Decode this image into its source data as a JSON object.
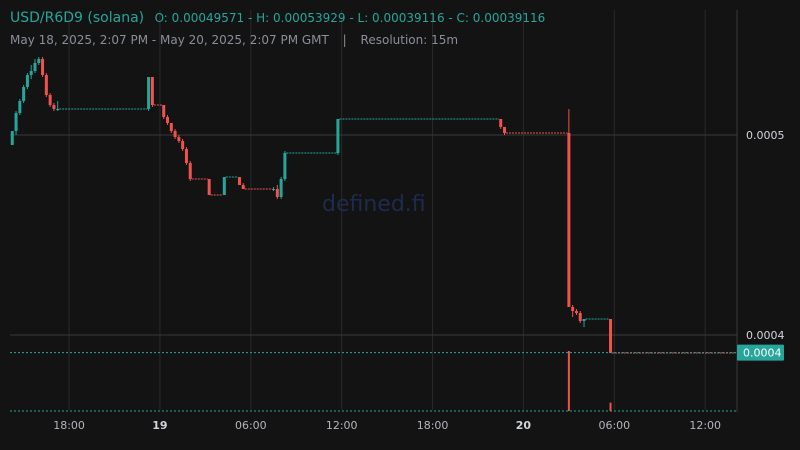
{
  "header": {
    "symbol": "USD/R6D9 (solana)",
    "ohlc_text": "O: 0.00049571 - H: 0.00053929 - L: 0.00039116 - C: 0.00039116",
    "range": "May 18, 2025, 2:07 PM - May 20, 2025, 2:07 PM GMT",
    "separator": "|",
    "resolution": "Resolution: 15m"
  },
  "watermark": "defined.fi",
  "colors": {
    "up": "#26a69a",
    "down": "#ef5350",
    "background": "#131313",
    "grid": "#2a2a2a",
    "last_price_badge": "#26a69a"
  },
  "chart_data": {
    "type": "candlestick",
    "x_ticks": [
      "18:00",
      "19",
      "06:00",
      "12:00",
      "18:00",
      "20",
      "06:00",
      "12:00"
    ],
    "y_ticks": [
      "0.0005",
      "0.0004"
    ],
    "last_price_label": "0.0004",
    "last_price": 0.00039116,
    "ylim": [
      0.000365,
      0.00054
    ],
    "xlim_hours": [
      14.1,
      62.1
    ],
    "grid": true,
    "candles": [
      {
        "t": 14.25,
        "o": 0.000495,
        "h": 0.000502,
        "l": 0.000495,
        "c": 0.000502
      },
      {
        "t": 14.5,
        "o": 0.000502,
        "h": 0.000512,
        "l": 0.0005,
        "c": 0.000511
      },
      {
        "t": 14.75,
        "o": 0.000511,
        "h": 0.000518,
        "l": 0.00051,
        "c": 0.000517
      },
      {
        "t": 15.0,
        "o": 0.000517,
        "h": 0.000525,
        "l": 0.000516,
        "c": 0.000524
      },
      {
        "t": 15.25,
        "o": 0.000524,
        "h": 0.000531,
        "l": 0.000523,
        "c": 0.00053
      },
      {
        "t": 15.5,
        "o": 0.00053,
        "h": 0.000535,
        "l": 0.000528,
        "c": 0.000532
      },
      {
        "t": 15.75,
        "o": 0.000532,
        "h": 0.000538,
        "l": 0.000531,
        "c": 0.000536
      },
      {
        "t": 16.0,
        "o": 0.000536,
        "h": 0.000539,
        "l": 0.000535,
        "c": 0.000538
      },
      {
        "t": 16.25,
        "o": 0.000538,
        "h": 0.000539,
        "l": 0.000529,
        "c": 0.00053
      },
      {
        "t": 16.5,
        "o": 0.00053,
        "h": 0.000531,
        "l": 0.000519,
        "c": 0.00052
      },
      {
        "t": 16.75,
        "o": 0.00052,
        "h": 0.000521,
        "l": 0.000514,
        "c": 0.000515
      },
      {
        "t": 17.0,
        "o": 0.000515,
        "h": 0.000516,
        "l": 0.000512,
        "c": 0.000513
      },
      {
        "t": 17.25,
        "o": 0.000513,
        "h": 0.000517,
        "l": 0.000512,
        "c": 0.000513
      },
      {
        "t": 23.25,
        "o": 0.000513,
        "h": 0.000529,
        "l": 0.000512,
        "c": 0.000529
      },
      {
        "t": 23.5,
        "o": 0.000529,
        "h": 0.000529,
        "l": 0.000514,
        "c": 0.000515
      },
      {
        "t": 24.25,
        "o": 0.000515,
        "h": 0.000515,
        "l": 0.000508,
        "c": 0.000509
      },
      {
        "t": 24.5,
        "o": 0.000509,
        "h": 0.00051,
        "l": 0.000505,
        "c": 0.000506
      },
      {
        "t": 24.75,
        "o": 0.000506,
        "h": 0.000506,
        "l": 0.000501,
        "c": 0.000502
      },
      {
        "t": 25.0,
        "o": 0.000502,
        "h": 0.000503,
        "l": 0.000498,
        "c": 0.000499
      },
      {
        "t": 25.25,
        "o": 0.000499,
        "h": 0.0005,
        "l": 0.000496,
        "c": 0.000497
      },
      {
        "t": 25.5,
        "o": 0.000497,
        "h": 0.000498,
        "l": 0.000492,
        "c": 0.000493
      },
      {
        "t": 25.75,
        "o": 0.000493,
        "h": 0.000494,
        "l": 0.000485,
        "c": 0.000486
      },
      {
        "t": 26.0,
        "o": 0.000486,
        "h": 0.000487,
        "l": 0.000477,
        "c": 0.000478
      },
      {
        "t": 27.25,
        "o": 0.000478,
        "h": 0.000478,
        "l": 0.00047,
        "c": 0.00047
      },
      {
        "t": 28.25,
        "o": 0.00047,
        "h": 0.000479,
        "l": 0.00047,
        "c": 0.000479
      },
      {
        "t": 29.25,
        "o": 0.000479,
        "h": 0.000479,
        "l": 0.000475,
        "c": 0.000475
      },
      {
        "t": 29.5,
        "o": 0.000475,
        "h": 0.000476,
        "l": 0.000473,
        "c": 0.000473
      },
      {
        "t": 31.5,
        "o": 0.000473,
        "h": 0.000474,
        "l": 0.000472,
        "c": 0.000473
      },
      {
        "t": 31.75,
        "o": 0.000473,
        "h": 0.000475,
        "l": 0.000468,
        "c": 0.000469
      },
      {
        "t": 32.0,
        "o": 0.000469,
        "h": 0.000479,
        "l": 0.000468,
        "c": 0.000478
      },
      {
        "t": 32.25,
        "o": 0.000478,
        "h": 0.000492,
        "l": 0.000477,
        "c": 0.000491
      },
      {
        "t": 35.75,
        "o": 0.000491,
        "h": 0.000508,
        "l": 0.00049,
        "c": 0.000508
      },
      {
        "t": 46.5,
        "o": 0.000508,
        "h": 0.000508,
        "l": 0.000503,
        "c": 0.000504
      },
      {
        "t": 46.75,
        "o": 0.000504,
        "h": 0.000504,
        "l": 0.0005,
        "c": 0.000501
      },
      {
        "t": 51.0,
        "o": 0.000501,
        "h": 0.000513,
        "l": 0.000414,
        "c": 0.000414
      },
      {
        "t": 51.25,
        "o": 0.000414,
        "h": 0.000415,
        "l": 0.000409,
        "c": 0.000412
      },
      {
        "t": 51.5,
        "o": 0.000412,
        "h": 0.000413,
        "l": 0.00041,
        "c": 0.000411
      },
      {
        "t": 51.75,
        "o": 0.000411,
        "h": 0.000412,
        "l": 0.000406,
        "c": 0.000407
      },
      {
        "t": 52.0,
        "o": 0.000407,
        "h": 0.000408,
        "l": 0.000404,
        "c": 0.000408
      },
      {
        "t": 53.75,
        "o": 0.000408,
        "h": 0.000408,
        "l": 0.000391,
        "c": 0.000391
      }
    ],
    "volume_spikes": [
      {
        "t": 51.0,
        "v": 1.0
      },
      {
        "t": 53.75,
        "v": 0.14
      }
    ]
  }
}
